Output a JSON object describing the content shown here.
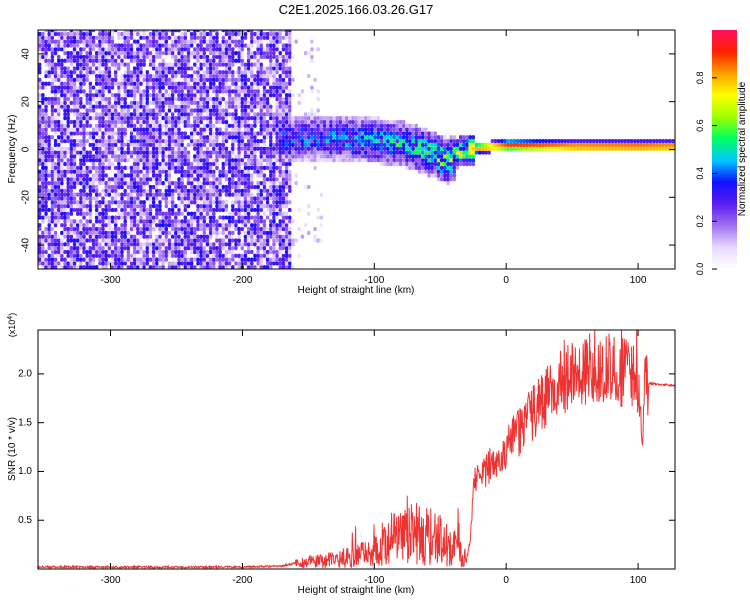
{
  "figure_title": "C2E1.2025.166.03.26.G17",
  "chart_data": [
    {
      "type": "heatmap",
      "title": "C2E1.2025.166.03.26.G17",
      "xlabel": "Height of straight line (km)",
      "ylabel": "Frequency (Hz)",
      "xlim": [
        -355,
        128
      ],
      "ylim": [
        -50,
        50
      ],
      "x_ticks": [
        -300,
        -200,
        -100,
        0,
        100
      ],
      "x_tick_labels": [
        "-300",
        "-200",
        "-100",
        "0",
        "100"
      ],
      "y_ticks": [
        -40,
        -20,
        0,
        20,
        40
      ],
      "y_tick_labels": [
        "-40",
        "-20",
        "0",
        "20",
        "40"
      ],
      "colorbar": {
        "label": "Normalized spectral amplitude",
        "range": [
          0,
          1
        ],
        "ticks": [
          0.0,
          0.2,
          0.4,
          0.6,
          0.8
        ],
        "tick_labels": [
          "0.0",
          "0.2",
          "0.4",
          "0.6",
          "0.8"
        ],
        "colors": [
          "#ffffff",
          "#e8d8ff",
          "#a070f0",
          "#5a1ef0",
          "#1010ff",
          "#00c8ff",
          "#00ff60",
          "#a0ff00",
          "#ffff00",
          "#ffa000",
          "#ff2000",
          "#ff1060"
        ]
      },
      "signal_center_hz": [
        {
          "x": -175,
          "f": 4
        },
        {
          "x": -150,
          "f": 4
        },
        {
          "x": -125,
          "f": 4
        },
        {
          "x": -100,
          "f": 3
        },
        {
          "x": -75,
          "f": 1
        },
        {
          "x": -55,
          "f": -3
        },
        {
          "x": -45,
          "f": -6
        },
        {
          "x": -35,
          "f": -1
        },
        {
          "x": -20,
          "f": 0
        },
        {
          "x": 0,
          "f": 1
        },
        {
          "x": 50,
          "f": 0.5
        },
        {
          "x": 100,
          "f": 0.5
        },
        {
          "x": 128,
          "f": 0.5
        }
      ],
      "signal_peak_amplitude": [
        {
          "x": -175,
          "a": 0.35
        },
        {
          "x": -125,
          "a": 0.4
        },
        {
          "x": -100,
          "a": 0.42
        },
        {
          "x": -60,
          "a": 0.5
        },
        {
          "x": -40,
          "a": 0.55
        },
        {
          "x": -25,
          "a": 0.8
        },
        {
          "x": 0,
          "a": 0.9
        },
        {
          "x": 100,
          "a": 0.95
        },
        {
          "x": 128,
          "a": 0.92
        }
      ],
      "noise_region_km": [
        -355,
        -165
      ]
    },
    {
      "type": "line",
      "xlabel": "Height of straight line (km)",
      "ylabel": "SNR (10 * v/v)",
      "y_multiplier": "(x10^4)",
      "xlim": [
        -355,
        128
      ],
      "ylim": [
        0,
        2.45
      ],
      "x_ticks": [
        -300,
        -200,
        -100,
        0,
        100
      ],
      "x_tick_labels": [
        "-300",
        "-200",
        "-100",
        "0",
        "100"
      ],
      "y_ticks": [
        0.5,
        1.0,
        1.5,
        2.0
      ],
      "y_tick_labels": [
        "0.5",
        "1.0",
        "1.5",
        "2.0"
      ],
      "series": [
        {
          "color": "#ee3333",
          "x": [
            -355,
            -300,
            -250,
            -200,
            -170,
            -160,
            -140,
            -120,
            -100,
            -90,
            -80,
            -60,
            -50,
            -40,
            -30,
            -27,
            -25,
            -22,
            -20,
            -10,
            0,
            10,
            20,
            30,
            40,
            50,
            60,
            80,
            100,
            103,
            105,
            110,
            128
          ],
          "y": [
            0.02,
            0.02,
            0.02,
            0.02,
            0.03,
            0.06,
            0.08,
            0.12,
            0.18,
            0.25,
            0.35,
            0.35,
            0.3,
            0.2,
            0.1,
            0.3,
            0.9,
            0.95,
            0.9,
            1.1,
            1.25,
            1.4,
            1.6,
            1.75,
            1.9,
            2.0,
            2.05,
            2.05,
            1.95,
            1.35,
            1.9,
            1.9,
            1.88
          ]
        }
      ]
    }
  ]
}
